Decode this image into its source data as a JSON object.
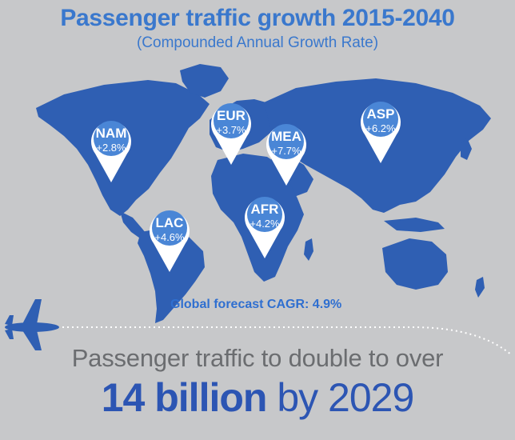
{
  "title": "Passenger traffic growth 2015-2040",
  "subtitle": "(Compounded Annual Growth Rate)",
  "regions": [
    {
      "code": "NAM",
      "rate": "+2.8%"
    },
    {
      "code": "EUR",
      "rate": "+3.7%"
    },
    {
      "code": "MEA",
      "rate": "+7.7%"
    },
    {
      "code": "ASP",
      "rate": "+6.2%"
    },
    {
      "code": "AFR",
      "rate": "+4.2%"
    },
    {
      "code": "LAC",
      "rate": "+4.6%"
    }
  ],
  "forecast": "Global forecast CAGR: 4.9%",
  "headline": {
    "line1": "Passenger traffic to double to over",
    "bold": "14 billion",
    "rest": " by 2029"
  },
  "colors": {
    "background": "#c7c8ca",
    "map": "#2f5fb3",
    "pin": "#4a86d6",
    "accent": "#3a78cd"
  },
  "icons": [
    "airplane-icon",
    "location-pin-icon"
  ]
}
